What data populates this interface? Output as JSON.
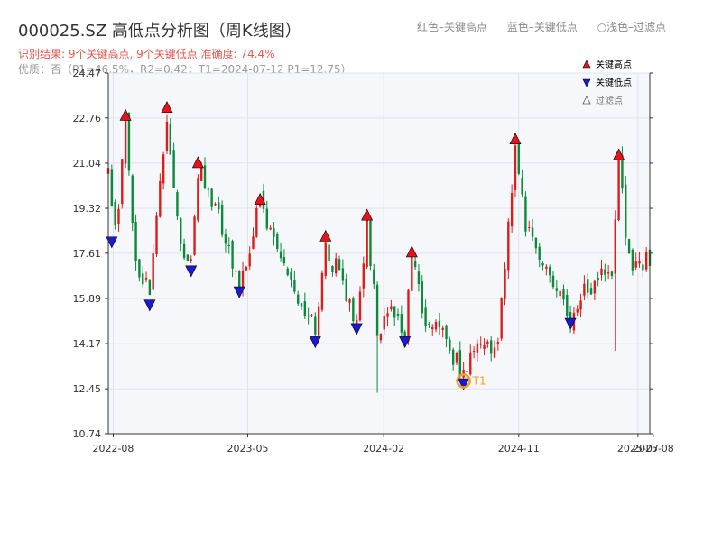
{
  "title": "000025.SZ 高低点分析图（周K线图）",
  "subtitle_result": "识别结果: 9个关键高点, 9个关键低点   准确度: 74.4%",
  "subtitle_quality": "优质：否（P1=46.5%，R2=0.42；T1=2024-07-12 P1=12.75）",
  "top_legend": {
    "red": "红色–关键高点",
    "blue": "蓝色–关键低点",
    "light": "○浅色–过滤点"
  },
  "chart_data": {
    "type": "candlestick",
    "title": "000025.SZ 高低点分析图（周K线图）",
    "xlabel": "",
    "ylabel": "",
    "ylim": [
      10.74,
      24.47
    ],
    "yticks": [
      10.74,
      12.45,
      14.17,
      15.89,
      17.61,
      19.32,
      21.04,
      22.76,
      24.47
    ],
    "xlim": [
      "2022-07-22",
      "2025-07-25"
    ],
    "xticks": [
      {
        "date": "2022-08-01",
        "label": "2022-08"
      },
      {
        "date": "2023-05-01",
        "label": "2023-05"
      },
      {
        "date": "2024-02-01",
        "label": "2024-02"
      },
      {
        "date": "2024-11-01",
        "label": "2024-11"
      },
      {
        "date": "2025-07-01",
        "label": "2025-07"
      },
      {
        "date": "2025-08-01",
        "label": "2025-08"
      }
    ],
    "grid": true,
    "legend_position": "top-right",
    "legend": [
      "关键高点",
      "关键低点",
      "过滤点"
    ],
    "colors": {
      "up": "#dd1c1c",
      "down": "#0a8a3a",
      "high_marker": "#e8121c",
      "low_marker": "#1a1ad6",
      "t1_ring": "#f0a020",
      "plot_bg": "#f5f7fa"
    },
    "anchors": [
      [
        "2022-07-22",
        20.5
      ],
      [
        "2022-08-05",
        18.3
      ],
      [
        "2022-08-26",
        22.6
      ],
      [
        "2022-09-16",
        17.3
      ],
      [
        "2022-10-14",
        15.9
      ],
      [
        "2022-11-18",
        22.9
      ],
      [
        "2022-12-16",
        17.8
      ],
      [
        "2023-01-06",
        17.2
      ],
      [
        "2023-01-20",
        20.8
      ],
      [
        "2023-03-03",
        19.2
      ],
      [
        "2023-04-14",
        16.4
      ],
      [
        "2023-05-26",
        19.4
      ],
      [
        "2023-06-30",
        17.4
      ],
      [
        "2023-08-25",
        15.6
      ],
      [
        "2023-09-15",
        14.5
      ],
      [
        "2023-10-06",
        18.0
      ],
      [
        "2023-11-10",
        16.3
      ],
      [
        "2023-12-08",
        15.0
      ],
      [
        "2023-12-29",
        18.8
      ],
      [
        "2024-01-19",
        14.7
      ],
      [
        "2024-02-23",
        15.6
      ],
      [
        "2024-03-15",
        14.5
      ],
      [
        "2024-03-29",
        17.4
      ],
      [
        "2024-04-26",
        15.0
      ],
      [
        "2024-06-07",
        14.2
      ],
      [
        "2024-07-12",
        12.9
      ],
      [
        "2024-08-16",
        14.3
      ],
      [
        "2024-09-20",
        14.0
      ],
      [
        "2024-10-25",
        21.7
      ],
      [
        "2024-11-15",
        18.8
      ],
      [
        "2024-12-20",
        17.1
      ],
      [
        "2025-02-14",
        15.2
      ],
      [
        "2025-03-21",
        16.2
      ],
      [
        "2025-04-18",
        17.2
      ],
      [
        "2025-05-09",
        16.3
      ],
      [
        "2025-05-23",
        21.1
      ],
      [
        "2025-06-13",
        17.4
      ],
      [
        "2025-07-25",
        17.2
      ]
    ],
    "spikes": [
      {
        "date": "2024-01-19",
        "low": 12.3
      },
      {
        "date": "2025-05-16",
        "low": 13.9
      }
    ],
    "key_highs": [
      {
        "date": "2022-08-26",
        "value": 22.6
      },
      {
        "date": "2022-11-18",
        "value": 22.9
      },
      {
        "date": "2023-01-20",
        "value": 20.8
      },
      {
        "date": "2023-05-26",
        "value": 19.4
      },
      {
        "date": "2023-10-06",
        "value": 18.0
      },
      {
        "date": "2023-12-29",
        "value": 18.8
      },
      {
        "date": "2024-03-29",
        "value": 17.4
      },
      {
        "date": "2024-10-25",
        "value": 21.7
      },
      {
        "date": "2025-05-23",
        "value": 21.1
      }
    ],
    "key_lows": [
      {
        "date": "2022-07-29",
        "value": 18.3
      },
      {
        "date": "2022-10-14",
        "value": 15.9
      },
      {
        "date": "2023-01-06",
        "value": 17.2
      },
      {
        "date": "2023-04-14",
        "value": 16.4
      },
      {
        "date": "2023-09-15",
        "value": 14.5
      },
      {
        "date": "2023-12-08",
        "value": 15.0
      },
      {
        "date": "2024-03-15",
        "value": 14.5
      },
      {
        "date": "2024-07-12",
        "value": 12.9
      },
      {
        "date": "2025-02-14",
        "value": 15.2
      }
    ],
    "t1": {
      "date": "2024-07-12",
      "value": 12.75,
      "label": "T1"
    }
  }
}
